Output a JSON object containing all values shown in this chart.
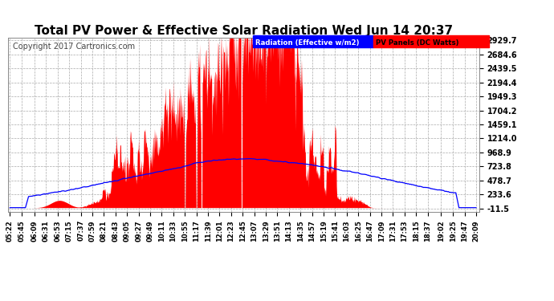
{
  "title": "Total PV Power & Effective Solar Radiation Wed Jun 14 20:37",
  "copyright": "Copyright 2017 Cartronics.com",
  "legend_blue": "Radiation (Effective w/m2)",
  "legend_red": "PV Panels (DC Watts)",
  "yticks": [
    -11.5,
    233.6,
    478.7,
    723.8,
    968.9,
    1214.0,
    1459.1,
    1704.2,
    1949.3,
    2194.4,
    2439.5,
    2684.6,
    2929.7
  ],
  "ymin": -11.5,
  "ymax": 2929.7,
  "bg_color": "#ffffff",
  "plot_bg_color": "#ffffff",
  "grid_color": "#aaaaaa",
  "red_fill_color": "#ff0000",
  "blue_line_color": "#0000ff",
  "title_color": "#000000",
  "title_fontsize": 11,
  "copyright_fontsize": 7,
  "tick_fontsize": 6,
  "ytick_fontsize": 7,
  "xtick_labels": [
    "05:22",
    "05:45",
    "06:09",
    "06:31",
    "06:53",
    "07:15",
    "07:37",
    "07:59",
    "08:21",
    "08:43",
    "09:05",
    "09:27",
    "09:49",
    "10:11",
    "10:33",
    "10:55",
    "11:17",
    "11:39",
    "12:01",
    "12:23",
    "12:45",
    "13:07",
    "13:29",
    "13:51",
    "14:13",
    "14:35",
    "14:57",
    "15:19",
    "15:41",
    "16:03",
    "16:25",
    "16:47",
    "17:09",
    "17:31",
    "17:53",
    "18:15",
    "18:37",
    "19:02",
    "19:25",
    "19:47",
    "20:09"
  ]
}
